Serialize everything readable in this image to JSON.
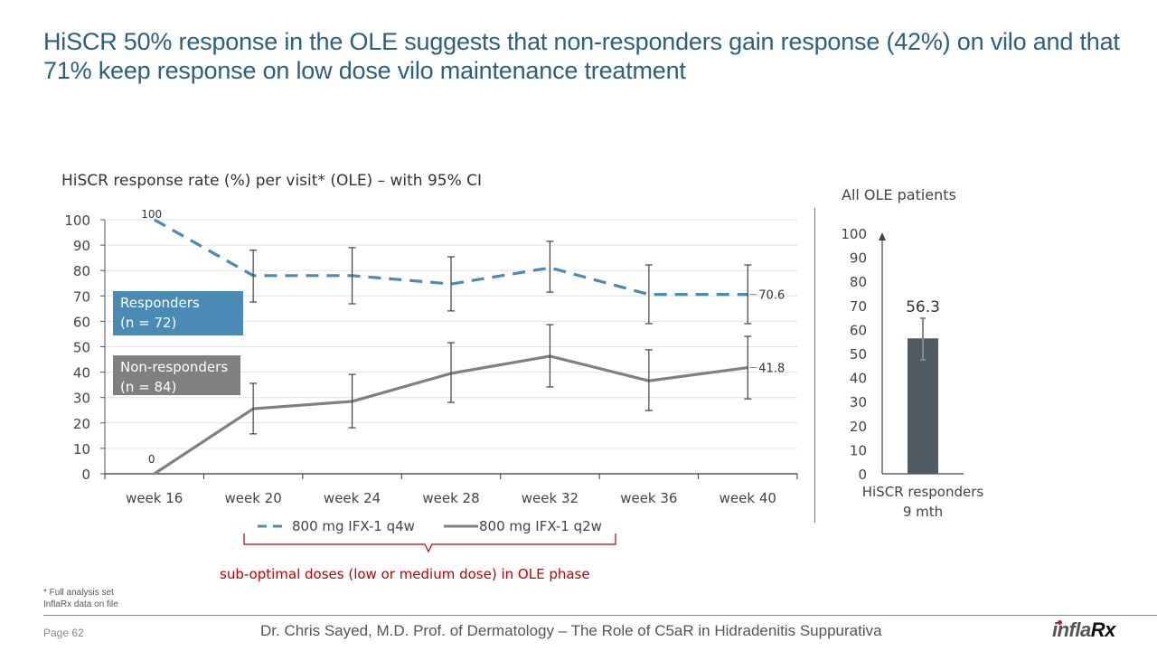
{
  "slide": {
    "title": "HiSCR 50% response in the OLE suggests that non-responders gain response (42%) on vilo and that 71% keep response on low dose vilo maintenance treatment",
    "brace_label": "sub-optimal doses (low or medium dose) in OLE phase",
    "footnotes": [
      "* Full analysis set",
      "InflaRx data on file"
    ],
    "page": "Page 62",
    "footer": "Dr. Chris Sayed, M.D. Prof. of Dermatology – The Role of C5aR in Hidradenitis Suppurativa",
    "logo": {
      "main": "infla",
      "accent": "Rx"
    },
    "colors": {
      "title": "#2e5f7f",
      "responders": "#4a8bb5",
      "non_responders": "#808080",
      "bar": "#4f5a62",
      "brace": "#c00000",
      "error_bar": "#404040"
    }
  },
  "chart_data": [
    {
      "type": "line",
      "title": "HiSCR response rate (%) per visit* (OLE) – with 95% CI",
      "xlabel": "",
      "ylabel": "",
      "categories": [
        "week 16",
        "week 20",
        "week 24",
        "week 28",
        "week 32",
        "week 36",
        "week 40"
      ],
      "ylim": [
        0,
        100
      ],
      "yticks": [
        0,
        10,
        20,
        30,
        40,
        50,
        60,
        70,
        80,
        90,
        100
      ],
      "grid": true,
      "legend_position": "bottom",
      "series": [
        {
          "name": "800 mg IFX-1 q4w",
          "group_label": [
            "Responders",
            "(n = 72)"
          ],
          "style": "dashed",
          "values": [
            100,
            78.0,
            78.0,
            74.7,
            81.1,
            70.6,
            70.6
          ],
          "ci_upper": [
            null,
            88.0,
            89.0,
            85.4,
            91.5,
            82.2,
            82.2
          ],
          "ci_lower": [
            null,
            67.6,
            66.9,
            64.1,
            71.5,
            59.1,
            59.1
          ],
          "data_labels": {
            "0": "100",
            "6": "70.6"
          }
        },
        {
          "name": "800 mg IFX-1 q2w",
          "group_label": [
            "Non-responders",
            "(n = 84)"
          ],
          "style": "solid",
          "values": [
            0,
            25.6,
            28.5,
            39.5,
            46.3,
            36.6,
            41.8
          ],
          "ci_upper": [
            null,
            35.6,
            39.1,
            51.6,
            58.7,
            48.8,
            54.1
          ],
          "ci_lower": [
            null,
            15.7,
            18.1,
            28.1,
            34.2,
            24.9,
            29.5
          ],
          "data_labels": {
            "0": "0",
            "6": "41.8"
          }
        }
      ]
    },
    {
      "type": "bar",
      "title": "All OLE patients",
      "categories": [
        "HiSCR responders 9 mth"
      ],
      "category_lines": [
        "HiSCR responders",
        "9 mth"
      ],
      "values": [
        56.3
      ],
      "ci_upper": [
        64.7
      ],
      "ci_lower": [
        47.4
      ],
      "data_labels": [
        "56.3"
      ],
      "ylim": [
        0,
        100
      ],
      "yticks": [
        0,
        10,
        20,
        30,
        40,
        50,
        60,
        70,
        80,
        90,
        100
      ],
      "grid": false
    }
  ]
}
